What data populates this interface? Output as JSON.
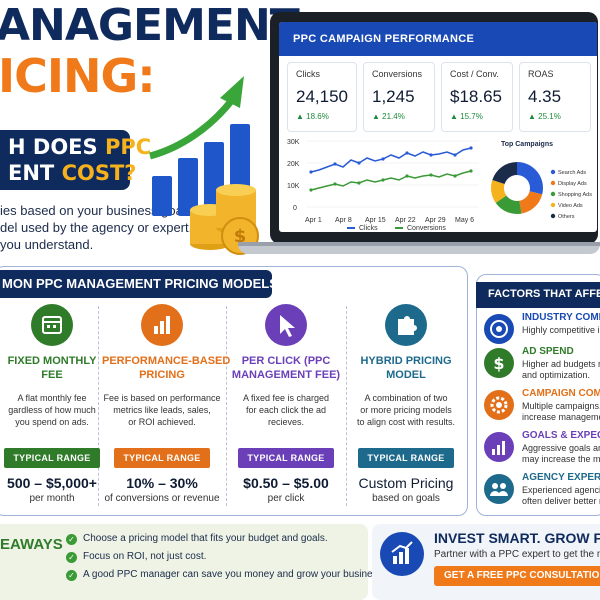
{
  "hero": {
    "title_line1": "ANAGEMENT",
    "title_line2": "ICING:",
    "badge_line1_a": "H DOES ",
    "badge_line1_b": "PPC",
    "badge_line2_a": "ENT ",
    "badge_line2_b": "COST?",
    "desc": [
      "ies based on your business goals,",
      "del used by the agency or expert.",
      "you understand."
    ]
  },
  "dashboard": {
    "title": "PPC CAMPAIGN PERFORMANCE",
    "metrics": [
      {
        "label": "Clicks",
        "value": "24,150",
        "change": "18.6%"
      },
      {
        "label": "Conversions",
        "value": "1,245",
        "change": "21.4%"
      },
      {
        "label": "Cost / Conv.",
        "value": "$18.65",
        "change": "15.7%"
      },
      {
        "label": "ROAS",
        "value": "4.35",
        "change": "25.1%"
      }
    ],
    "line_chart": {
      "y_ticks": [
        "30K",
        "20K",
        "10K",
        "0"
      ],
      "x_ticks": [
        "Apr 1",
        "Apr 8",
        "Apr 15",
        "Apr 22",
        "Apr 29",
        "May 6"
      ],
      "legend": [
        "Clicks",
        "Conversions"
      ],
      "clicks_color": "#2a5bd7",
      "conversions_color": "#3a9a35"
    },
    "pie": {
      "title": "Top Campaigns",
      "legend": [
        {
          "label": "Search Ads",
          "color": "#2a5bd7"
        },
        {
          "label": "Display Ads",
          "color": "#f07a1a"
        },
        {
          "label": "Shopping Ads",
          "color": "#3a9a35"
        },
        {
          "label": "Video Ads",
          "color": "#f6b21c"
        },
        {
          "label": "Others",
          "color": "#1b2b4a"
        }
      ]
    }
  },
  "models": {
    "heading": "MON PPC MANAGEMENT PRICING MODELS",
    "cols": [
      {
        "title": [
          "FIXED MONTHLY",
          "FEE"
        ],
        "color": "#2f7b2a",
        "icon": "calendar-icon",
        "desc": [
          "A flat monthly fee",
          "gardless of how much",
          "you spend on ads."
        ],
        "range_label": "TYPICAL RANGE",
        "price": "500 – $5,000+",
        "sub": "per month"
      },
      {
        "title": [
          "PERFORMANCE-BASED",
          "PRICING"
        ],
        "color": "#e2701a",
        "icon": "bar-chart-icon",
        "desc": [
          "Fee is based on performance",
          "metrics like leads, sales,",
          "or ROI achieved."
        ],
        "range_label": "TYPICAL RANGE",
        "price": "10% – 30%",
        "sub": "of conversions or revenue"
      },
      {
        "title": [
          "PER CLICK (PPC",
          "MANAGEMENT FEE)"
        ],
        "color": "#6a3fb8",
        "icon": "cursor-icon",
        "desc": [
          "A fixed fee is charged",
          "for each click the ad",
          "recieves."
        ],
        "range_label": "TYPICAL RANGE",
        "price": "$0.50 – $5.00",
        "sub": "per click"
      },
      {
        "title": [
          "HYBRID PRICING",
          "MODEL"
        ],
        "color": "#1e6a8c",
        "icon": "puzzle-icon",
        "desc": [
          "A combination of two",
          "or more pricing models",
          "to align cost with results."
        ],
        "range_label": "TYPICAL RANGE",
        "price": "Custom Pricing",
        "sub": "based on goals"
      }
    ]
  },
  "factors": {
    "heading": "FACTORS THAT AFFECT",
    "items": [
      {
        "title": "INDUSTRY COMPETI",
        "desc": [
          "Highly competitive in"
        ],
        "color": "#1849b4",
        "icon": "target-icon"
      },
      {
        "title": "AD SPEND",
        "desc": [
          "Higher ad budgets re",
          "and optimization."
        ],
        "color": "#2f7b2a",
        "icon": "dollar-icon"
      },
      {
        "title": "CAMPAIGN COMPL",
        "desc": [
          "Multiple campaigns,",
          "increase managemen"
        ],
        "color": "#e2701a",
        "icon": "gear-icon"
      },
      {
        "title": "GOALS & EXPECTA",
        "desc": [
          "Aggressive goals and",
          "may increase the ma"
        ],
        "color": "#6a3fb8",
        "icon": "chart-icon"
      },
      {
        "title": "AGENCY EXPERIEN",
        "desc": [
          "Experienced agencie",
          "often deliver better r"
        ],
        "color": "#1e6a8c",
        "icon": "people-icon"
      }
    ]
  },
  "takeaways": {
    "label": "EAWAYS",
    "items": [
      "Choose a pricing model that fits your budget and goals.",
      "Focus on ROI, not just cost.",
      "A good PPC manager can save you money and grow your business."
    ]
  },
  "cta": {
    "title": "INVEST SMART. GROW FAS",
    "sub": "Partner with a PPC expert to get the m",
    "button": "GET A FREE PPC CONSULTATION T"
  }
}
